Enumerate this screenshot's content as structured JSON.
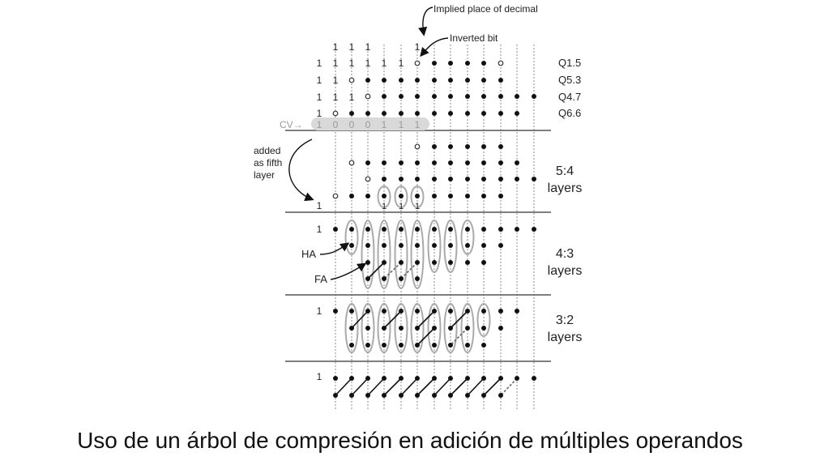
{
  "annotations": {
    "decimal": "Implied place of decimal",
    "inverted": "Inverted bit",
    "added": [
      "added",
      "as fifth",
      "layer"
    ],
    "cv": "CV→",
    "ha": "HA",
    "fa": "FA"
  },
  "operand_labels": [
    "Q1.5",
    "Q5.3",
    "Q4.7",
    "Q6.6"
  ],
  "layer_labels": [
    [
      "5:4",
      "layers"
    ],
    [
      "4:3",
      "layers"
    ],
    [
      "3:2",
      "layers"
    ]
  ],
  "cv_bits": [
    "1",
    "0",
    "0",
    "0",
    "1",
    "1",
    "1"
  ],
  "top_ones": [
    "1",
    "1",
    "1",
    "1"
  ],
  "operand_ones": [
    [
      "1",
      "1",
      "1",
      "1",
      "1",
      "1"
    ],
    [
      "1",
      "1"
    ],
    [
      "1",
      "1",
      "1"
    ],
    [
      "1"
    ]
  ],
  "layer_ones": {
    "fivefour_left": "1",
    "fivefour_bottom": [
      "1",
      "1",
      "1"
    ],
    "fourthree": "1",
    "threetwo": "1",
    "final": "1"
  },
  "caption": "Uso de un árbol de compresión en adición de múltiples operandos"
}
